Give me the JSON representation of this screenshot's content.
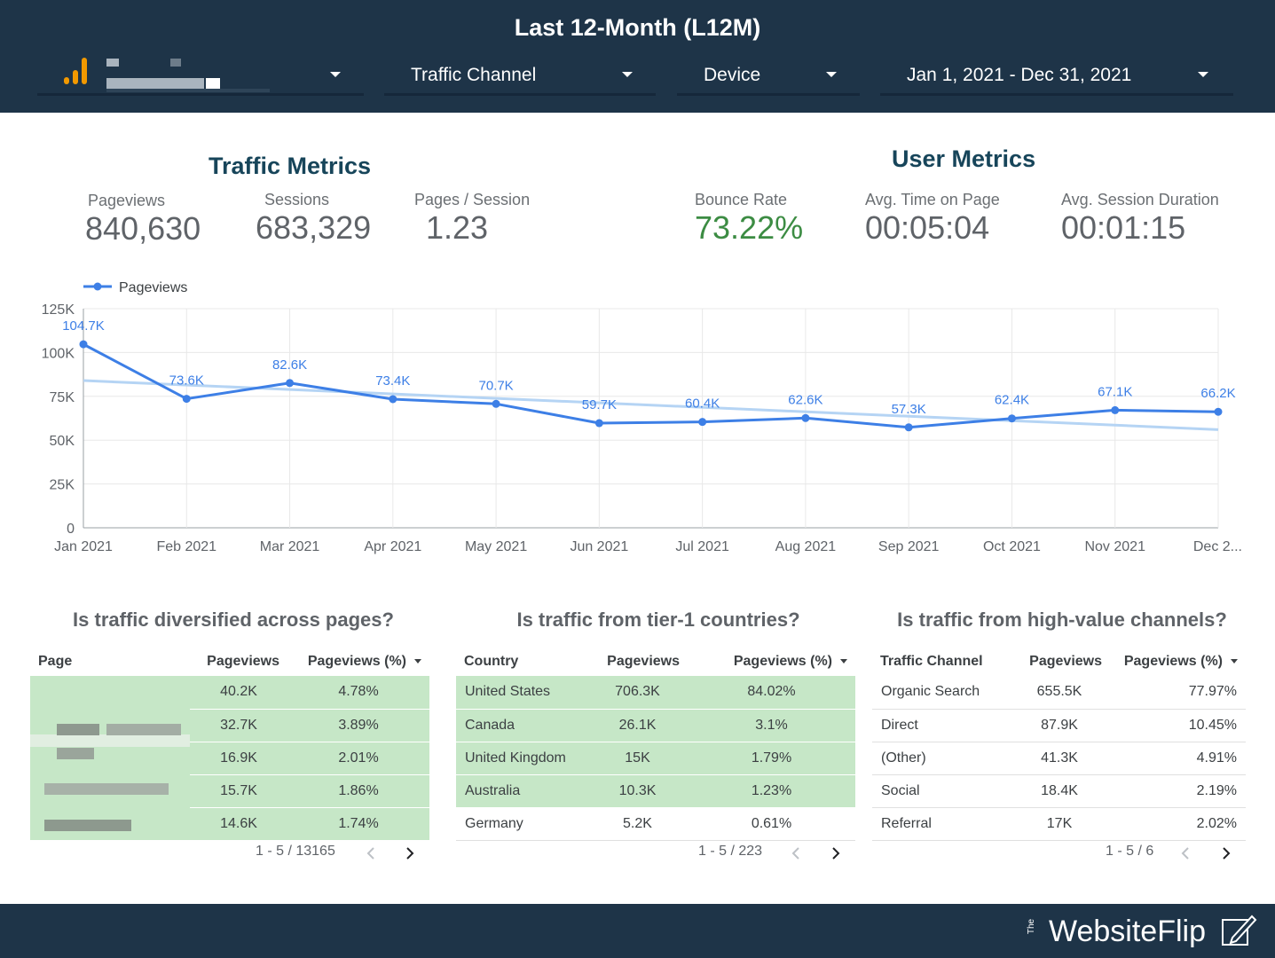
{
  "header": {
    "title": "Last 12-Month (L12M)",
    "filters": {
      "traffic_channel": "Traffic Channel",
      "device": "Device",
      "date_range": "Jan 1, 2021 - Dec 31, 2021"
    }
  },
  "traffic_metrics": {
    "title": "Traffic Metrics",
    "pageviews_label": "Pageviews",
    "pageviews_value": "840,630",
    "sessions_label": "Sessions",
    "sessions_value": "683,329",
    "pps_label": "Pages / Session",
    "pps_value": "1.23"
  },
  "user_metrics": {
    "title": "User Metrics",
    "bounce_label": "Bounce Rate",
    "bounce_value": "73.22%",
    "time_label": "Avg. Time on Page",
    "time_value": "00:05:04",
    "duration_label": "Avg. Session Duration",
    "duration_value": "00:01:15"
  },
  "chart_data": {
    "type": "line",
    "categories": [
      "Jan 2021",
      "Feb 2021",
      "Mar 2021",
      "Apr 2021",
      "May 2021",
      "Jun 2021",
      "Jul 2021",
      "Aug 2021",
      "Sep 2021",
      "Oct 2021",
      "Nov 2021",
      "Dec 2..."
    ],
    "series": [
      {
        "name": "Pageviews",
        "values": [
          104700,
          73600,
          82600,
          73400,
          70700,
          59700,
          60400,
          62600,
          57300,
          62400,
          67100,
          66200
        ],
        "labels": [
          "104.7K",
          "73.6K",
          "82.6K",
          "73.4K",
          "70.7K",
          "59.7K",
          "60.4K",
          "62.6K",
          "57.3K",
          "62.4K",
          "67.1K",
          "66.2K"
        ],
        "color": "#3d7fe6"
      }
    ],
    "trendline": {
      "start": 84000,
      "end": 56000,
      "color": "#b5d4f4"
    },
    "ylim": [
      0,
      125000
    ],
    "yticks": [
      0,
      25000,
      50000,
      75000,
      100000,
      125000
    ],
    "ytick_labels": [
      "0",
      "25K",
      "50K",
      "75K",
      "100K",
      "125K"
    ],
    "legend_position": "top-left",
    "grid": true
  },
  "pages_table": {
    "title": "Is traffic diversified across pages?",
    "headers": [
      "Page",
      "Pageviews",
      "Pageviews (%)"
    ],
    "rows": [
      {
        "pageviews": "40.2K",
        "pct": "4.78%"
      },
      {
        "pageviews": "32.7K",
        "pct": "3.89%"
      },
      {
        "pageviews": "16.9K",
        "pct": "2.01%"
      },
      {
        "pageviews": "15.7K",
        "pct": "1.86%"
      },
      {
        "pageviews": "14.6K",
        "pct": "1.74%"
      }
    ],
    "pagination": "1 - 5 / 13165"
  },
  "countries_table": {
    "title": "Is traffic from tier-1 countries?",
    "headers": [
      "Country",
      "Pageviews",
      "Pageviews (%)"
    ],
    "rows": [
      {
        "name": "United States",
        "pageviews": "706.3K",
        "pct": "84.02%"
      },
      {
        "name": "Canada",
        "pageviews": "26.1K",
        "pct": "3.1%"
      },
      {
        "name": "United Kingdom",
        "pageviews": "15K",
        "pct": "1.79%"
      },
      {
        "name": "Australia",
        "pageviews": "10.3K",
        "pct": "1.23%"
      },
      {
        "name": "Germany",
        "pageviews": "5.2K",
        "pct": "0.61%"
      }
    ],
    "pagination": "1 - 5 / 223"
  },
  "channels_table": {
    "title": "Is traffic from high-value channels?",
    "headers": [
      "Traffic Channel",
      "Pageviews",
      "Pageviews (%)"
    ],
    "rows": [
      {
        "name": "Organic Search",
        "pageviews": "655.5K",
        "pct": "77.97%"
      },
      {
        "name": "Direct",
        "pageviews": "87.9K",
        "pct": "10.45%"
      },
      {
        "name": "(Other)",
        "pageviews": "41.3K",
        "pct": "4.91%"
      },
      {
        "name": "Social",
        "pageviews": "18.4K",
        "pct": "2.19%"
      },
      {
        "name": "Referral",
        "pageviews": "17K",
        "pct": "2.02%"
      }
    ],
    "pagination": "1 - 5 / 6"
  },
  "footer": {
    "brand_prefix": "The",
    "brand": "WebsiteFlip"
  }
}
